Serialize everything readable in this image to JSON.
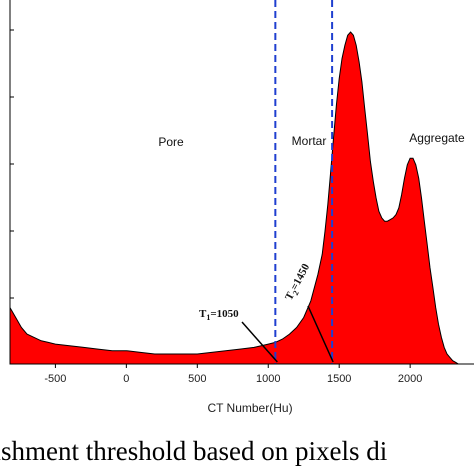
{
  "caption": "lishment threshold based on pixels di",
  "chart_data": {
    "type": "area",
    "xlabel": "CT Number(Hu)",
    "ylabel": "",
    "xlim": [
      -820,
      2450
    ],
    "ylim": [
      0,
      1.0
    ],
    "x_ticks": [
      -500,
      0,
      500,
      1000,
      1500,
      2000
    ],
    "fill_color": "#ff0000",
    "line_color": "#000000",
    "threshold_line_color": "#1f3fd0",
    "thresholds": [
      {
        "name": "T",
        "sub": "1",
        "value": 1050,
        "text": "T",
        "suffix": "=1050"
      },
      {
        "name": "T",
        "sub": "2",
        "value": 1450,
        "text": "T",
        "suffix": "=1450"
      }
    ],
    "regions": [
      "Pore",
      "Mortar",
      "Aggregate"
    ],
    "series": [
      {
        "x": [
          -820,
          -780,
          -740,
          -700,
          -650,
          -600,
          -550,
          -500,
          -400,
          -300,
          -200,
          -100,
          0,
          100,
          200,
          300,
          400,
          500,
          600,
          700,
          800,
          900,
          1000,
          1050,
          1100,
          1150,
          1200,
          1250,
          1300,
          1350,
          1380,
          1400,
          1420,
          1440,
          1460,
          1480,
          1500,
          1520,
          1540,
          1560,
          1580,
          1600,
          1620,
          1640,
          1660,
          1680,
          1700,
          1720,
          1740,
          1760,
          1780,
          1800,
          1820,
          1840,
          1860,
          1880,
          1900,
          1920,
          1940,
          1960,
          1980,
          2000,
          2020,
          2040,
          2060,
          2080,
          2100,
          2120,
          2140,
          2160,
          2180,
          2200,
          2220,
          2240,
          2260,
          2280,
          2300,
          2320,
          2340,
          2360,
          2380,
          2400,
          2420,
          2450
        ],
        "y": [
          0.17,
          0.14,
          0.11,
          0.09,
          0.08,
          0.07,
          0.065,
          0.06,
          0.055,
          0.05,
          0.045,
          0.04,
          0.04,
          0.035,
          0.03,
          0.03,
          0.03,
          0.03,
          0.035,
          0.04,
          0.045,
          0.05,
          0.06,
          0.065,
          0.075,
          0.09,
          0.11,
          0.14,
          0.19,
          0.27,
          0.33,
          0.4,
          0.48,
          0.58,
          0.68,
          0.78,
          0.86,
          0.92,
          0.96,
          0.99,
          1.0,
          0.99,
          0.96,
          0.91,
          0.85,
          0.77,
          0.69,
          0.61,
          0.55,
          0.5,
          0.46,
          0.44,
          0.43,
          0.43,
          0.435,
          0.44,
          0.45,
          0.47,
          0.51,
          0.56,
          0.6,
          0.62,
          0.62,
          0.6,
          0.56,
          0.5,
          0.43,
          0.36,
          0.29,
          0.23,
          0.17,
          0.12,
          0.08,
          0.05,
          0.03,
          0.02,
          0.01,
          0.005,
          0,
          0,
          0,
          0,
          0,
          0
        ]
      }
    ]
  }
}
